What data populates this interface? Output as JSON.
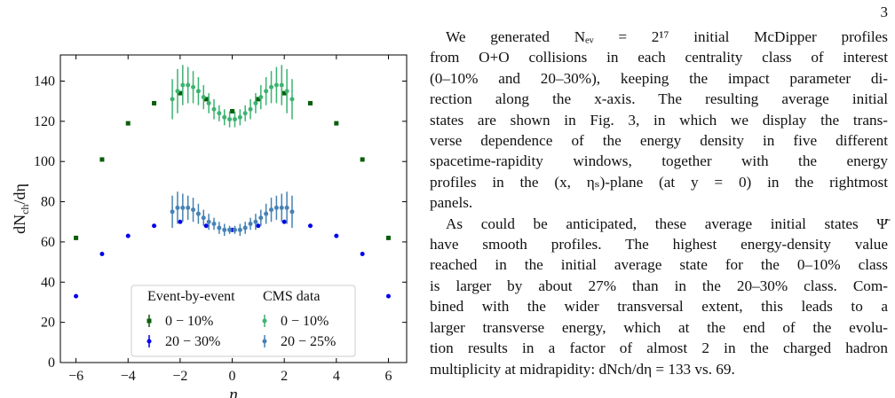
{
  "page_number": "3",
  "chart_data": {
    "type": "scatter",
    "xlabel": "η",
    "ylabel": {
      "main": "dN",
      "sub": "ch",
      "tail": "/dη"
    },
    "xlim": [
      -6.6,
      6.7
    ],
    "ylim": [
      0,
      153
    ],
    "xticks": [
      {
        "value": -6,
        "label": "−6"
      },
      {
        "value": -4,
        "label": "−4"
      },
      {
        "value": -2,
        "label": "−2"
      },
      0,
      2,
      4,
      6
    ],
    "yticks": [
      0,
      20,
      40,
      60,
      80,
      100,
      120,
      140
    ],
    "legend_columns": [
      "Event-by-event",
      "CMS data"
    ],
    "series": [
      {
        "name": "0 − 10%",
        "color": "#0b5e0b",
        "marker": "square",
        "legend_column": 0,
        "x": [
          -6,
          -5,
          -4,
          -3,
          -2,
          -1,
          0,
          1,
          2,
          3,
          4,
          5,
          6
        ],
        "values": [
          62,
          101,
          119,
          129,
          134,
          131,
          125,
          131,
          134,
          129,
          119,
          101,
          62
        ]
      },
      {
        "name": "20 − 30%",
        "color": "#0000ee",
        "marker": "circle",
        "legend_column": 0,
        "x": [
          -6,
          -5,
          -4,
          -3,
          -2,
          -1,
          0,
          1,
          2,
          3,
          4,
          5,
          6
        ],
        "values": [
          33,
          54,
          63,
          68,
          70,
          68,
          66,
          68,
          70,
          68,
          63,
          54,
          33
        ]
      },
      {
        "name": "0 − 10%",
        "color": "#3cb371",
        "marker": "circle",
        "legend_column": 1,
        "x": [
          -2.3,
          -2.1,
          -1.9,
          -1.7,
          -1.5,
          -1.3,
          -1.1,
          -0.9,
          -0.7,
          -0.5,
          -0.3,
          -0.1,
          0.1,
          0.3,
          0.5,
          0.7,
          0.9,
          1.1,
          1.3,
          1.5,
          1.7,
          1.9,
          2.1,
          2.3
        ],
        "values": [
          131,
          135,
          138,
          138,
          137,
          135,
          132,
          129,
          126,
          124,
          122,
          121,
          121,
          122,
          124,
          126,
          129,
          132,
          135,
          137,
          138,
          138,
          135,
          131
        ],
        "errors": [
          10,
          11,
          10,
          9,
          8,
          7,
          6,
          5,
          5,
          4,
          4,
          4,
          4,
          4,
          4,
          5,
          5,
          6,
          7,
          8,
          9,
          10,
          11,
          10
        ]
      },
      {
        "name": "20 − 25%",
        "color": "#4682b4",
        "marker": "circle",
        "legend_column": 1,
        "x": [
          -2.3,
          -2.1,
          -1.9,
          -1.7,
          -1.5,
          -1.3,
          -1.1,
          -0.9,
          -0.7,
          -0.5,
          -0.3,
          -0.1,
          0.1,
          0.3,
          0.5,
          0.7,
          0.9,
          1.1,
          1.3,
          1.5,
          1.7,
          1.9,
          2.1,
          2.3
        ],
        "values": [
          75,
          77,
          77,
          77,
          76,
          74,
          72,
          70,
          69,
          67,
          66,
          66,
          66,
          66,
          67,
          69,
          70,
          72,
          74,
          76,
          77,
          77,
          77,
          75
        ],
        "errors": [
          8,
          8,
          7,
          6,
          6,
          5,
          4,
          4,
          3,
          3,
          3,
          2,
          2,
          3,
          3,
          3,
          4,
          4,
          5,
          6,
          6,
          7,
          8,
          8
        ]
      }
    ]
  },
  "text": {
    "paragraphs": [
      [
        "We generated Nₑᵥ = 2¹⁷ initial McDipper profiles",
        "from O+O collisions in each centrality class of interest",
        "(0–10% and 20–30%), keeping the impact parameter di-",
        "rection along the x-axis.  The resulting average initial",
        "states are shown in Fig. 3, in which we display the trans-",
        "verse dependence of the energy density in five different",
        "spacetime-rapidity windows, together with the energy",
        "profiles in the (x, ηₛ)-plane (at y = 0) in the rightmost",
        "panels."
      ],
      [
        "As could be anticipated, these average initial states Ψ̄",
        "have smooth profiles. The highest energy-density value",
        "reached in the initial average state for the 0–10% class",
        "is larger by about 27% than in the 20–30% class. Com-",
        "bined with the wider transversal extent, this leads to a",
        "larger transverse energy, which at the end of the evolu-",
        "tion results in a factor of almost 2 in the charged hadron",
        "multiplicity at midrapidity: dNch/dη = 133 vs. 69."
      ]
    ]
  }
}
